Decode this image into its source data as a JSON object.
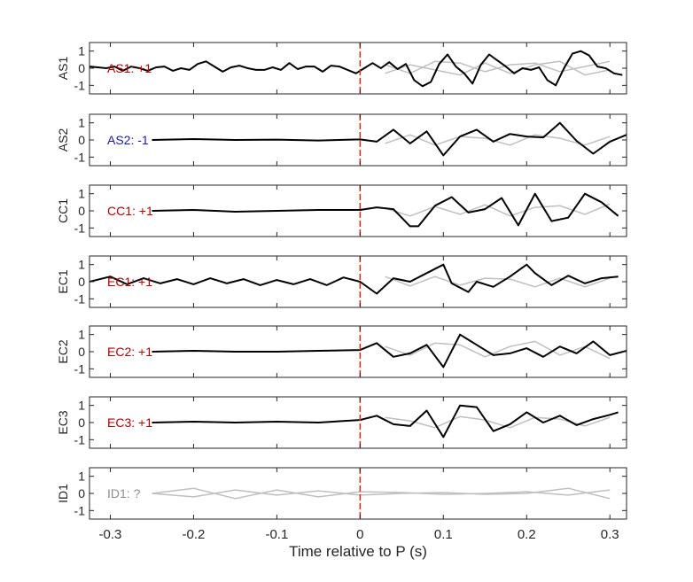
{
  "chart_data": {
    "type": "line",
    "xlabel": "Time relative to P (s)",
    "xlim": [
      -0.325,
      0.32
    ],
    "xticks": [
      -0.3,
      -0.2,
      -0.1,
      0,
      0.1,
      0.2,
      0.3
    ],
    "xtick_labels": [
      "-0.3",
      "-0.2",
      "-0.1",
      "0",
      "0.1",
      "0.2",
      "0.3"
    ],
    "ylim": [
      -1.5,
      1.5
    ],
    "yticks": [
      1,
      0,
      -1
    ],
    "ytick_labels": [
      "1",
      "0",
      "-1"
    ],
    "marker_time": 0,
    "colors": {
      "trace": "#000000",
      "background_traces": "#bfbfbf",
      "marker": "#e8231a",
      "label_pos": "#b00000",
      "label_neg": "#1a1aa8",
      "label_unknown": "#8c8c8c"
    },
    "panels": [
      {
        "ylabel": "AS1",
        "annotation": "AS1: +1",
        "polarity": "positive",
        "series": [
          {
            "x": [
              -0.325,
              -0.315,
              -0.305,
              -0.295,
              -0.285,
              -0.275,
              -0.265,
              -0.255,
              -0.245,
              -0.235,
              -0.225,
              -0.215,
              -0.205,
              -0.195,
              -0.185,
              -0.175,
              -0.165,
              -0.155,
              -0.145,
              -0.135,
              -0.125,
              -0.115,
              -0.105,
              -0.095,
              -0.085,
              -0.075,
              -0.065,
              -0.055,
              -0.045,
              -0.035,
              -0.025,
              -0.015,
              -0.005,
              0.005,
              0.015,
              0.025,
              0.035,
              0.045,
              0.055,
              0.065,
              0.075,
              0.085,
              0.095,
              0.105,
              0.115,
              0.125,
              0.135,
              0.145,
              0.155,
              0.165,
              0.175,
              0.185,
              0.195,
              0.205,
              0.215,
              0.225,
              0.235,
              0.245,
              0.255,
              0.265,
              0.275,
              0.285,
              0.295,
              0.305,
              0.315
            ],
            "y": [
              0.1,
              0.05,
              0.0,
              0.1,
              -0.15,
              0.1,
              0.0,
              -0.15,
              0.05,
              0.1,
              -0.15,
              0.0,
              -0.1,
              0.25,
              0.4,
              0.1,
              -0.2,
              0.05,
              0.15,
              0.0,
              -0.1,
              -0.1,
              0.05,
              -0.1,
              0.3,
              -0.05,
              0.1,
              0.1,
              -0.2,
              0.15,
              0.1,
              -0.1,
              -0.3,
              0.0,
              0.3,
              0.0,
              0.35,
              -0.05,
              0.25,
              -0.7,
              -1.05,
              -0.8,
              0.25,
              0.8,
              0.1,
              -0.3,
              -0.9,
              0.2,
              0.8,
              0.45,
              0.1,
              -0.3,
              0.0,
              -0.1,
              0.05,
              -0.7,
              -1.0,
              0.0,
              0.85,
              1.0,
              0.75,
              0.1,
              0.0,
              -0.3,
              -0.4
            ]
          },
          {
            "x": [
              0.03,
              0.06,
              0.09,
              0.12,
              0.15,
              0.18,
              0.21,
              0.24,
              0.27,
              0.3
            ],
            "y": [
              0.2,
              -0.3,
              0.4,
              0.3,
              -0.2,
              0.2,
              0.3,
              -0.2,
              0.1,
              0.4
            ]
          },
          {
            "x": [
              0.03,
              0.06,
              0.09,
              0.12,
              0.15,
              0.18,
              0.21,
              0.24,
              0.27,
              0.3
            ],
            "y": [
              -0.3,
              0.2,
              -0.1,
              -0.4,
              0.3,
              -0.3,
              0.2,
              0.4,
              -0.4,
              -0.1
            ]
          }
        ]
      },
      {
        "ylabel": "AS2",
        "annotation": "AS2: -1",
        "polarity": "negative",
        "series": [
          {
            "x": [
              -0.25,
              -0.2,
              -0.15,
              -0.1,
              -0.05,
              0.0,
              0.02,
              0.04,
              0.06,
              0.08,
              0.1,
              0.12,
              0.14,
              0.16,
              0.18,
              0.2,
              0.22,
              0.24,
              0.26,
              0.28,
              0.3,
              0.32
            ],
            "y": [
              0.0,
              0.05,
              0.0,
              0.02,
              -0.03,
              0.03,
              -0.1,
              0.6,
              -0.2,
              0.5,
              -0.9,
              0.2,
              0.6,
              -0.1,
              0.35,
              0.2,
              0.15,
              1.0,
              -0.05,
              -0.8,
              -0.1,
              0.3
            ]
          },
          {
            "x": [
              0.03,
              0.06,
              0.09,
              0.12,
              0.15,
              0.18,
              0.21,
              0.24,
              0.27,
              0.3
            ],
            "y": [
              -0.2,
              0.3,
              -0.3,
              0.2,
              0.1,
              -0.3,
              0.3,
              0.1,
              -0.3,
              0.2
            ]
          }
        ]
      },
      {
        "ylabel": "CC1",
        "annotation": "CC1: +1",
        "polarity": "positive",
        "series": [
          {
            "x": [
              -0.25,
              -0.2,
              -0.15,
              -0.1,
              -0.05,
              0.0,
              0.02,
              0.04,
              0.06,
              0.07,
              0.09,
              0.11,
              0.13,
              0.15,
              0.17,
              0.19,
              0.21,
              0.23,
              0.25,
              0.27,
              0.29,
              0.31
            ],
            "y": [
              0.0,
              0.05,
              -0.05,
              0.0,
              0.05,
              0.05,
              0.2,
              0.1,
              -0.9,
              -0.9,
              0.3,
              0.8,
              -0.1,
              0.1,
              0.75,
              -0.85,
              1.0,
              -0.6,
              -0.4,
              1.0,
              0.5,
              -0.3
            ]
          },
          {
            "x": [
              0.03,
              0.06,
              0.09,
              0.12,
              0.15,
              0.18,
              0.21,
              0.24,
              0.27,
              0.3
            ],
            "y": [
              0.15,
              -0.3,
              0.25,
              -0.2,
              0.35,
              -0.3,
              0.2,
              0.3,
              -0.2,
              0.4
            ]
          }
        ]
      },
      {
        "ylabel": "EC1",
        "annotation": "EC1: +1",
        "polarity": "positive",
        "series": [
          {
            "x": [
              -0.325,
              -0.3,
              -0.28,
              -0.26,
              -0.24,
              -0.22,
              -0.2,
              -0.18,
              -0.16,
              -0.14,
              -0.12,
              -0.1,
              -0.08,
              -0.06,
              -0.04,
              -0.02,
              0.0,
              0.02,
              0.04,
              0.06,
              0.08,
              0.1,
              0.11,
              0.13,
              0.14,
              0.16,
              0.18,
              0.2,
              0.21,
              0.23,
              0.25,
              0.27,
              0.29,
              0.31
            ],
            "y": [
              0.0,
              0.3,
              -0.15,
              0.2,
              -0.1,
              0.15,
              -0.15,
              0.2,
              -0.1,
              0.15,
              -0.2,
              0.1,
              -0.15,
              0.15,
              -0.2,
              0.25,
              0.0,
              -0.7,
              0.2,
              0.0,
              0.5,
              1.0,
              -0.1,
              -0.6,
              0.0,
              -0.3,
              0.3,
              1.0,
              0.5,
              -0.2,
              0.35,
              -0.1,
              0.2,
              0.3
            ]
          },
          {
            "x": [
              0.03,
              0.06,
              0.09,
              0.12,
              0.15,
              0.18,
              0.21,
              0.24,
              0.27,
              0.3
            ],
            "y": [
              0.3,
              -0.25,
              0.3,
              -0.2,
              0.2,
              0.15,
              -0.3,
              0.2,
              -0.3,
              0.2
            ]
          }
        ]
      },
      {
        "ylabel": "EC2",
        "annotation": "EC2: +1",
        "polarity": "positive",
        "series": [
          {
            "x": [
              -0.25,
              -0.2,
              -0.15,
              -0.1,
              -0.05,
              0.0,
              0.02,
              0.04,
              0.06,
              0.08,
              0.1,
              0.12,
              0.14,
              0.16,
              0.18,
              0.2,
              0.22,
              0.24,
              0.26,
              0.28,
              0.3,
              0.32
            ],
            "y": [
              0.0,
              0.05,
              0.0,
              0.0,
              0.05,
              0.1,
              0.5,
              -0.3,
              -0.1,
              0.4,
              -0.9,
              1.0,
              0.4,
              -0.2,
              -0.1,
              0.2,
              -0.3,
              0.3,
              -0.1,
              0.6,
              -0.2,
              0.05
            ]
          },
          {
            "x": [
              0.03,
              0.06,
              0.09,
              0.12,
              0.15,
              0.18,
              0.21,
              0.24,
              0.27,
              0.3
            ],
            "y": [
              0.3,
              -0.2,
              0.5,
              0.4,
              -0.3,
              0.3,
              0.6,
              -0.2,
              0.3,
              -0.4
            ]
          }
        ]
      },
      {
        "ylabel": "EC3",
        "annotation": "EC3: +1",
        "polarity": "positive",
        "series": [
          {
            "x": [
              -0.25,
              -0.2,
              -0.15,
              -0.1,
              -0.05,
              0.0,
              0.02,
              0.04,
              0.06,
              0.08,
              0.1,
              0.12,
              0.14,
              0.16,
              0.18,
              0.2,
              0.22,
              0.24,
              0.26,
              0.28,
              0.3,
              0.31
            ],
            "y": [
              0.0,
              0.05,
              0.0,
              0.05,
              0.0,
              0.15,
              0.4,
              -0.1,
              -0.2,
              0.7,
              -0.85,
              1.0,
              0.9,
              -0.5,
              -0.1,
              0.6,
              0.0,
              0.4,
              -0.15,
              0.2,
              0.45,
              0.6
            ]
          },
          {
            "x": [
              0.03,
              0.06,
              0.09,
              0.12,
              0.15,
              0.18,
              0.21,
              0.24,
              0.27,
              0.3
            ],
            "y": [
              0.3,
              0.1,
              -0.3,
              0.35,
              0.15,
              -0.3,
              0.3,
              0.2,
              -0.2,
              0.3
            ]
          }
        ]
      },
      {
        "ylabel": "ID1",
        "annotation": "ID1: ?",
        "polarity": "unknown",
        "series": [
          {
            "x": [
              -0.25,
              -0.2,
              -0.15,
              -0.1,
              -0.05,
              0.0,
              0.05,
              0.1,
              0.15,
              0.2,
              0.25,
              0.3
            ],
            "y": [
              0.0,
              0.3,
              -0.3,
              0.2,
              -0.2,
              0.1,
              0.05,
              -0.05,
              0.0,
              0.1,
              -0.1,
              0.2
            ]
          },
          {
            "x": [
              -0.25,
              -0.2,
              -0.15,
              -0.1,
              -0.05,
              0.0,
              0.05,
              0.1,
              0.15,
              0.2,
              0.25,
              0.3
            ],
            "y": [
              0.0,
              -0.2,
              0.2,
              -0.1,
              0.15,
              -0.1,
              0.0,
              0.05,
              -0.05,
              0.0,
              0.3,
              -0.3
            ]
          }
        ]
      }
    ]
  }
}
